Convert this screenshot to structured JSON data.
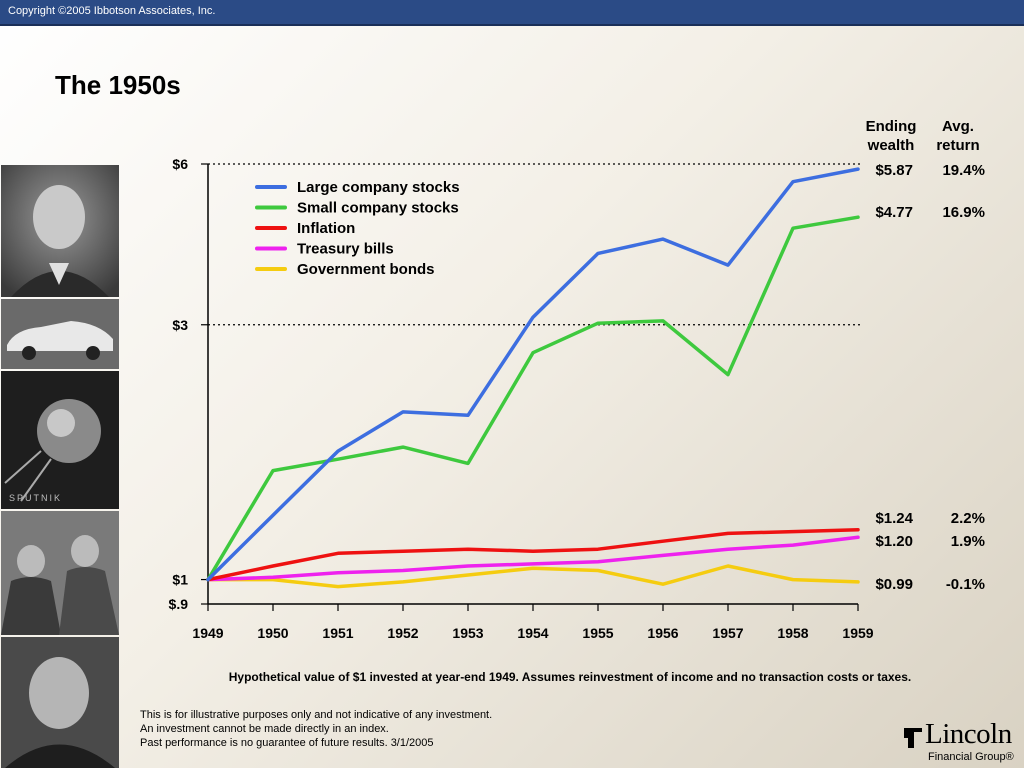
{
  "header": {
    "copyright": "Copyright ©2005 Ibbotson Associates, Inc."
  },
  "title": "The 1950s",
  "columns": {
    "ending_wealth": [
      "Ending",
      "wealth"
    ],
    "avg_return": [
      "Avg.",
      "return"
    ]
  },
  "photos": [
    "portrait-eisenhower",
    "classic-car",
    "sputnik",
    "soldiers",
    "portrait-mccarthy"
  ],
  "photo_caption": "SPUTNIK",
  "footnote": "Hypothetical value of $1 invested at year-end 1949. Assumes reinvestment of income and no transaction costs or taxes.",
  "disclaimer": [
    "This is for illustrative purposes only and not indicative of any investment.",
    "An investment cannot be made directly in an index.",
    "Past performance is no guarantee of future results. 3/1/2005"
  ],
  "logo": {
    "name": "Lincoln",
    "sub": "Financial Group",
    "mark": "®"
  },
  "colors": {
    "large": "#3d6ee0",
    "small": "#3ec93e",
    "inflation": "#ee1111",
    "tbills": "#ee22ee",
    "bonds": "#f5cc10"
  },
  "chart_data": {
    "type": "line",
    "x": [
      1949,
      1950,
      1951,
      1952,
      1953,
      1954,
      1955,
      1956,
      1957,
      1958,
      1959
    ],
    "x_ticks": [
      "1949",
      "1950",
      "1951",
      "1952",
      "1953",
      "1954",
      "1955",
      "1956",
      "1957",
      "1958",
      "1959"
    ],
    "y_scale": "log",
    "y_ticks": [
      {
        "value": 6,
        "label": "$6",
        "gridline": true
      },
      {
        "value": 3,
        "label": "$3",
        "gridline": true
      },
      {
        "value": 1,
        "label": "$1",
        "gridline": false
      },
      {
        "value": 0.9,
        "label": "$.9",
        "gridline": false
      }
    ],
    "ylim": [
      0.9,
      6
    ],
    "legend_position": "top-left",
    "series": [
      {
        "name": "Large company stocks",
        "color": "#3d6ee0",
        "ending": "$5.87",
        "avg": "19.4%",
        "values": [
          1,
          1.32,
          1.74,
          2.06,
          2.03,
          3.1,
          4.08,
          4.34,
          3.88,
          5.56,
          5.87
        ]
      },
      {
        "name": "Small company stocks",
        "color": "#3ec93e",
        "ending": "$4.77",
        "avg": "16.9%",
        "values": [
          1,
          1.6,
          1.68,
          1.77,
          1.65,
          2.66,
          3.02,
          3.05,
          2.42,
          4.55,
          4.77
        ]
      },
      {
        "name": "Inflation",
        "color": "#ee1111",
        "ending": "$1.24",
        "avg": "2.2%",
        "values": [
          1,
          1.06,
          1.12,
          1.13,
          1.14,
          1.13,
          1.14,
          1.18,
          1.22,
          1.23,
          1.24
        ]
      },
      {
        "name": "Treasury bills",
        "color": "#ee22ee",
        "ending": "$1.20",
        "avg": "1.9%",
        "values": [
          1,
          1.01,
          1.03,
          1.04,
          1.06,
          1.07,
          1.08,
          1.11,
          1.14,
          1.16,
          1.2
        ]
      },
      {
        "name": "Government bonds",
        "color": "#f5cc10",
        "ending": "$0.99",
        "avg": "-0.1%",
        "values": [
          1,
          1.0,
          0.97,
          0.99,
          1.02,
          1.05,
          1.04,
          0.98,
          1.06,
          1.0,
          0.99
        ]
      }
    ]
  }
}
